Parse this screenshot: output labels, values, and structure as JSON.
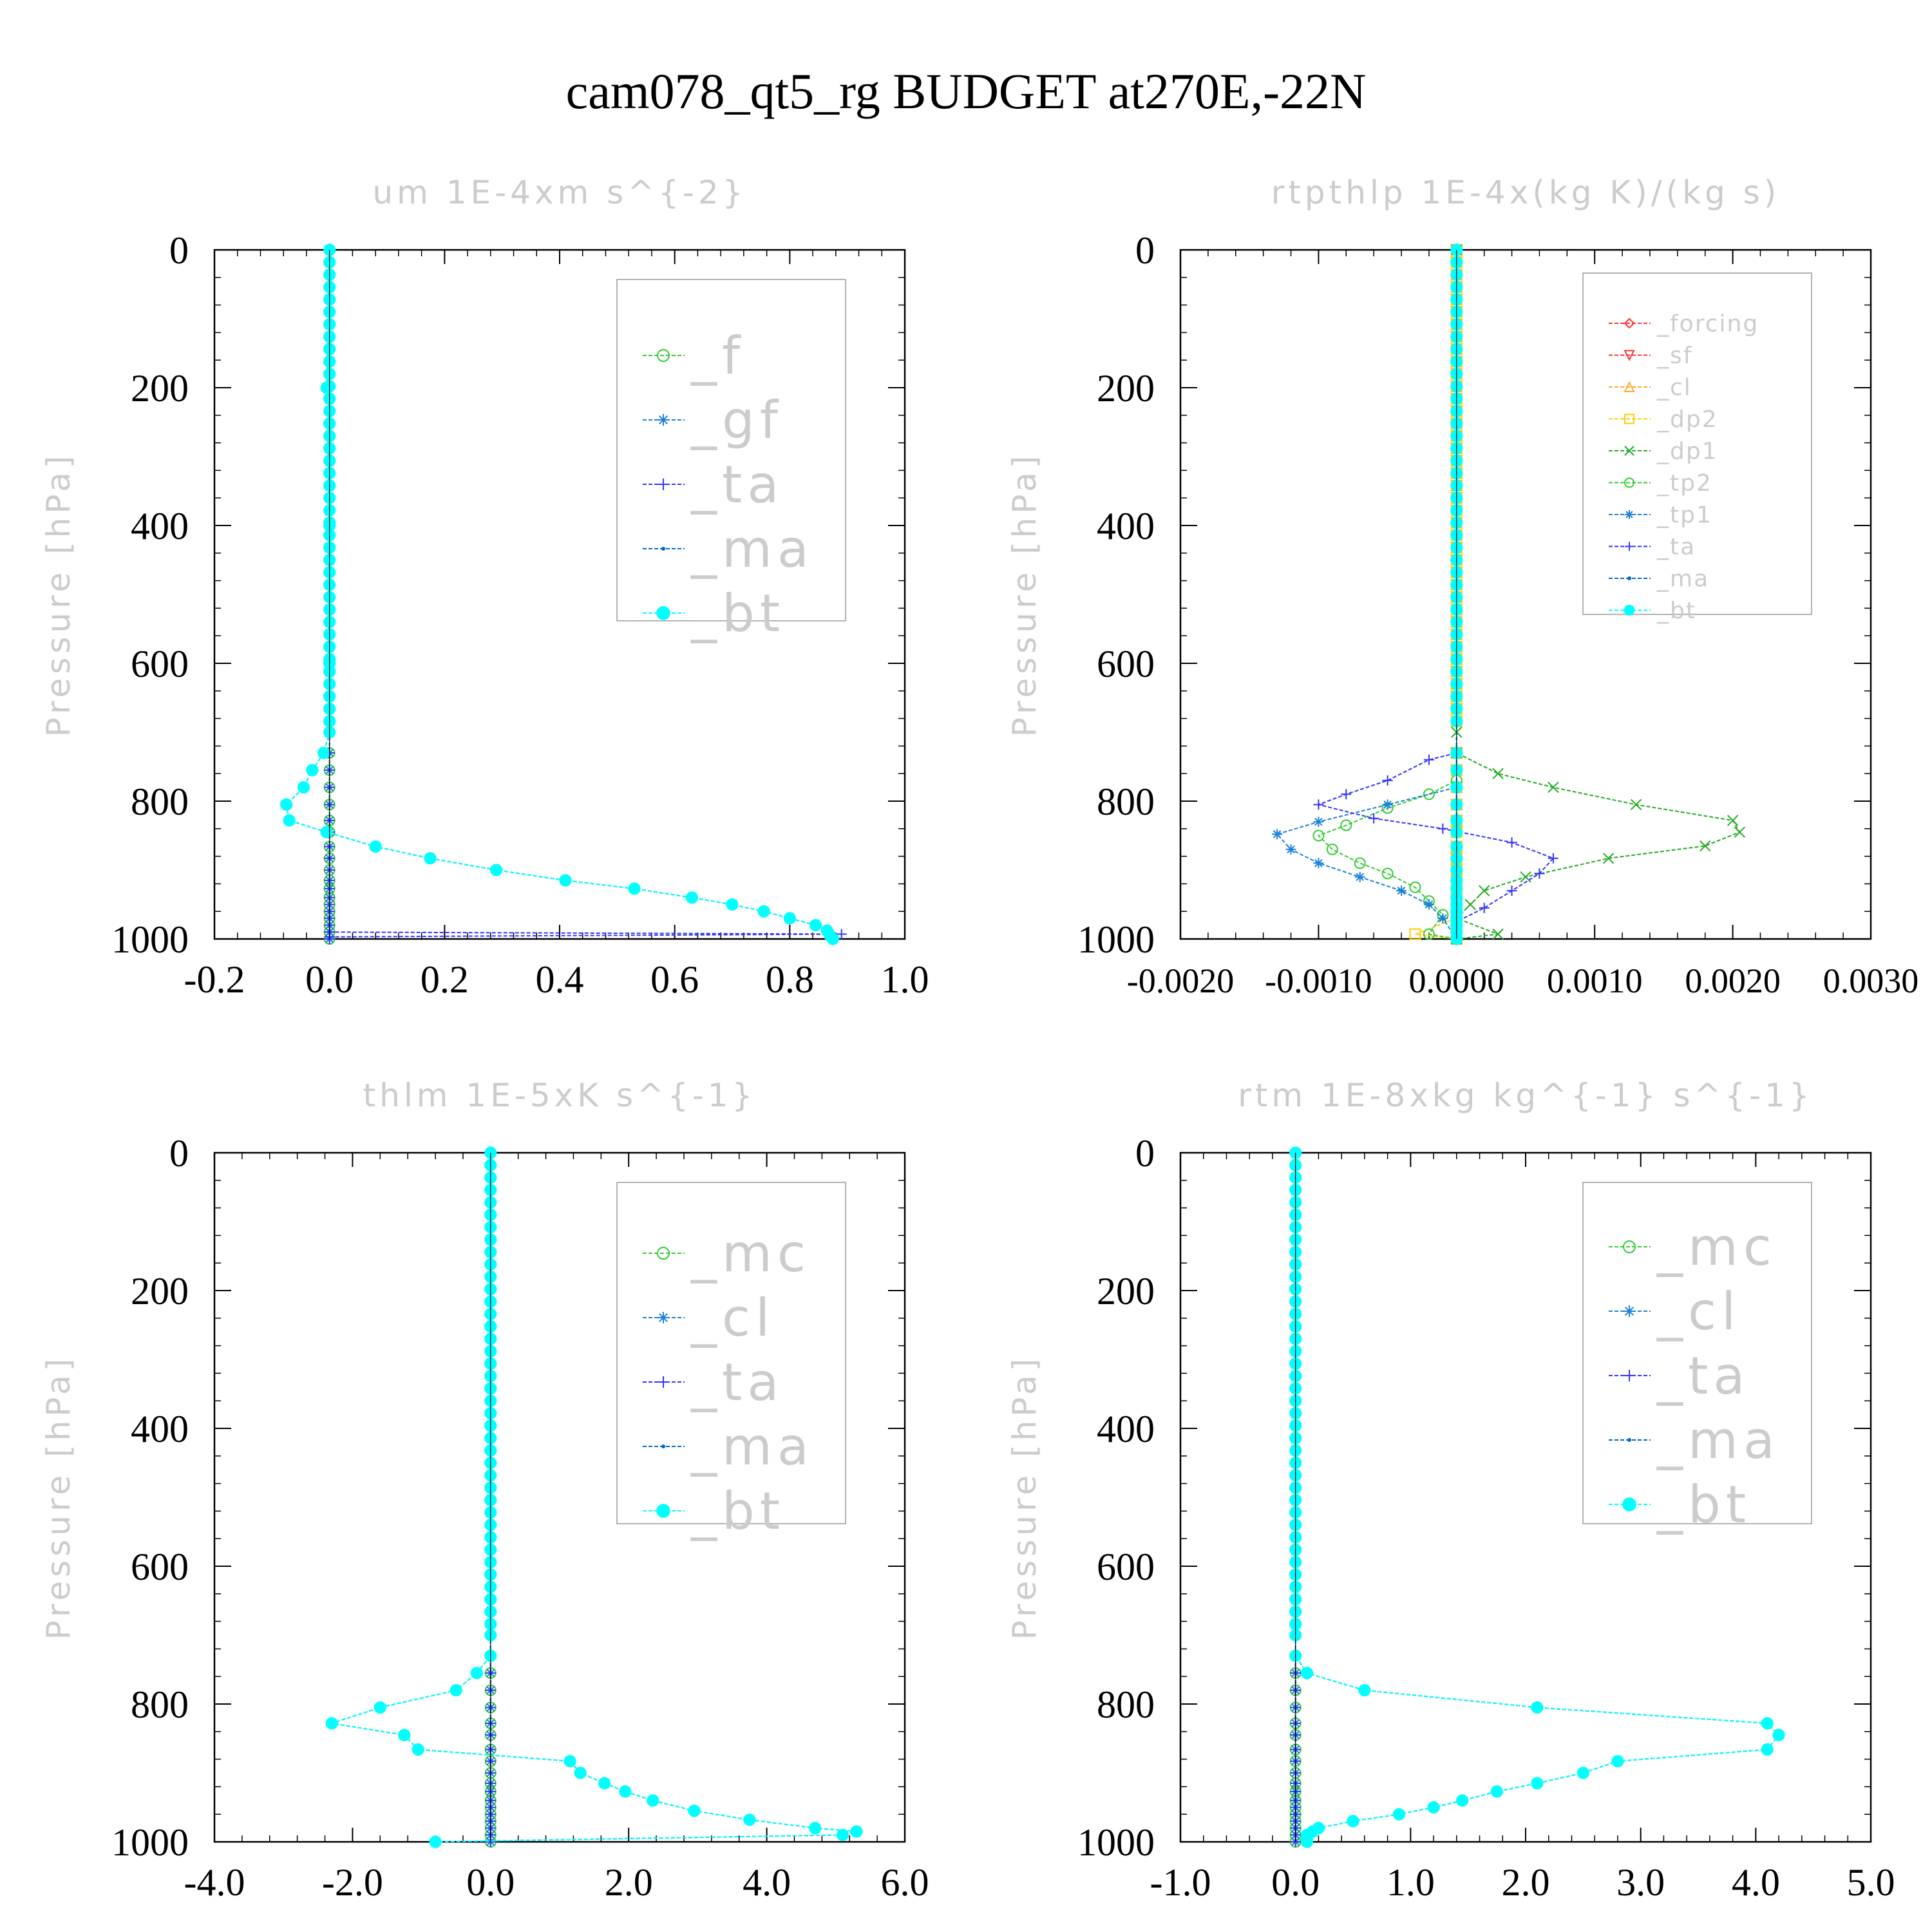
{
  "title": "cam078_qt5_rg  BUDGET at270E,-22N",
  "colors": {
    "green": "#33cc33",
    "blue_gf": "#1a80d9",
    "blue_ta": "#3333ff",
    "blue_ma": "#0066cc",
    "cyan": "#00ffff",
    "red": "#ff3333",
    "orange": "#ffaa33",
    "yellow": "#ffcc00",
    "darkgreen": "#22aa22",
    "faint_text": "#cccccc"
  },
  "chart_data": [
    {
      "type": "line",
      "title": "um   1E-4xm s^{-2}",
      "ylabel": "Pressure [hPa]",
      "xlim": [
        -0.2,
        1.0
      ],
      "ylim": [
        1000,
        0
      ],
      "xticks": [
        -0.2,
        0.0,
        0.2,
        0.4,
        0.6,
        0.8,
        1.0
      ],
      "xtick_labels": [
        "-0.2",
        "0.0",
        "0.2",
        "0.4",
        "0.6",
        "0.8",
        "1.0"
      ],
      "yticks": [
        0,
        200,
        400,
        600,
        800,
        1000
      ],
      "ytick_labels": [
        "0",
        "200",
        "400",
        "600",
        "800",
        "1000"
      ],
      "legend": "top-right",
      "series": [
        {
          "name": "_f",
          "color": "#33cc33",
          "marker": "circle",
          "constant": 0.0
        },
        {
          "name": "_gf",
          "color": "#1a80d9",
          "marker": "star",
          "constant": 0.0
        },
        {
          "name": "_ta",
          "color": "#3333ff",
          "marker": "plus",
          "constant": 0.0,
          "points": [
            [
              0.0,
              990
            ],
            [
              0.89,
              993
            ],
            [
              0.0,
              997
            ]
          ]
        },
        {
          "name": "_ma",
          "color": "#0066cc",
          "marker": "dot",
          "ref": "_bt"
        },
        {
          "name": "_bt",
          "color": "#00ffff",
          "marker": "bigdot",
          "points": [
            [
              0.0,
              0
            ],
            [
              -0.005,
              200
            ],
            [
              0.0,
              400
            ],
            [
              0.0,
              600
            ],
            [
              0.0,
              700
            ],
            [
              -0.01,
              730
            ],
            [
              -0.03,
              755
            ],
            [
              -0.045,
              780
            ],
            [
              -0.075,
              805
            ],
            [
              -0.07,
              828
            ],
            [
              -0.005,
              845
            ],
            [
              0.08,
              866
            ],
            [
              0.175,
              883
            ],
            [
              0.29,
              900
            ],
            [
              0.41,
              915
            ],
            [
              0.53,
              927
            ],
            [
              0.63,
              940
            ],
            [
              0.7,
              950
            ],
            [
              0.755,
              960
            ],
            [
              0.8,
              970
            ],
            [
              0.845,
              980
            ],
            [
              0.865,
              988
            ],
            [
              0.87,
              995
            ],
            [
              0.875,
              1000
            ]
          ]
        }
      ]
    },
    {
      "type": "line",
      "title": "rtpthlp   1E-4x(kg K)/(kg s)",
      "ylabel": "Pressure [hPa]",
      "xlim": [
        -0.002,
        0.003
      ],
      "ylim": [
        1000,
        0
      ],
      "xticks": [
        -0.002,
        -0.001,
        0.0,
        0.001,
        0.002,
        0.003
      ],
      "xtick_labels": [
        "-0.0020",
        "-0.0010",
        "0.0000",
        "0.0010",
        "0.0020",
        "0.0030"
      ],
      "yticks": [
        0,
        200,
        400,
        600,
        800,
        1000
      ],
      "ytick_labels": [
        "0",
        "200",
        "400",
        "600",
        "800",
        "1000"
      ],
      "legend": "top-right",
      "series": [
        {
          "name": "_forcing",
          "color": "#ff3333",
          "marker": "diamond",
          "constant": 0.0
        },
        {
          "name": "_sf",
          "color": "#ff3333",
          "marker": "triangle-down",
          "constant": 0.0
        },
        {
          "name": "_cl",
          "color": "#ffaa33",
          "marker": "triangle-up",
          "constant": 0.0
        },
        {
          "name": "_dp2",
          "color": "#ffcc00",
          "marker": "square",
          "constant": 0.0,
          "points": [
            [
              0.0,
              970
            ],
            [
              -0.0003,
              993
            ],
            [
              0.0,
              1000
            ]
          ]
        },
        {
          "name": "_dp1",
          "color": "#22aa22",
          "marker": "x",
          "points": [
            [
              0.0,
              0
            ],
            [
              0.0,
              700
            ],
            [
              0.0,
              730
            ],
            [
              0.0003,
              760
            ],
            [
              0.0007,
              780
            ],
            [
              0.0013,
              805
            ],
            [
              0.002,
              828
            ],
            [
              0.00205,
              845
            ],
            [
              0.0018,
              865
            ],
            [
              0.0011,
              883
            ],
            [
              0.0005,
              910
            ],
            [
              0.0002,
              930
            ],
            [
              0.0001,
              950
            ],
            [
              0.0,
              970
            ],
            [
              0.0003,
              993
            ],
            [
              0.0,
              1000
            ]
          ]
        },
        {
          "name": "_tp2",
          "color": "#33cc33",
          "marker": "circle",
          "points": [
            [
              0.0,
              0
            ],
            [
              0.0,
              770
            ],
            [
              -0.0002,
              790
            ],
            [
              -0.0005,
              810
            ],
            [
              -0.0008,
              835
            ],
            [
              -0.001,
              850
            ],
            [
              -0.0009,
              870
            ],
            [
              -0.0007,
              890
            ],
            [
              -0.0005,
              905
            ],
            [
              -0.0003,
              925
            ],
            [
              -0.0002,
              945
            ],
            [
              -0.0001,
              965
            ],
            [
              -0.0002,
              993
            ],
            [
              0.0,
              1000
            ]
          ]
        },
        {
          "name": "_tp1",
          "color": "#1a80d9",
          "marker": "star",
          "points": [
            [
              0.0,
              0
            ],
            [
              0.0,
              780
            ],
            [
              -0.0005,
              805
            ],
            [
              -0.001,
              830
            ],
            [
              -0.0013,
              848
            ],
            [
              -0.0012,
              870
            ],
            [
              -0.001,
              890
            ],
            [
              -0.0007,
              910
            ],
            [
              -0.0004,
              930
            ],
            [
              -0.0002,
              950
            ],
            [
              -0.0001,
              970
            ],
            [
              0.0,
              1000
            ]
          ]
        },
        {
          "name": "_ta",
          "color": "#3333ff",
          "marker": "plus",
          "points": [
            [
              0.0,
              0
            ],
            [
              0.0,
              730
            ],
            [
              -0.0002,
              740
            ],
            [
              -0.0005,
              770
            ],
            [
              -0.0008,
              790
            ],
            [
              -0.001,
              805
            ],
            [
              -0.0006,
              825
            ],
            [
              -0.0001,
              840
            ],
            [
              0.0004,
              860
            ],
            [
              0.0007,
              883
            ],
            [
              0.0006,
              905
            ],
            [
              0.0004,
              930
            ],
            [
              0.0002,
              955
            ],
            [
              0.0,
              975
            ],
            [
              0.0,
              1000
            ]
          ]
        },
        {
          "name": "_ma",
          "color": "#0066cc",
          "marker": "dot",
          "constant": 0.0
        },
        {
          "name": "_bt",
          "color": "#00ffff",
          "marker": "bigdot",
          "constant": 0.0
        }
      ]
    },
    {
      "type": "line",
      "title": "thlm   1E-5xK s^{-1}",
      "ylabel": "Pressure [hPa]",
      "xlim": [
        -4.0,
        6.0
      ],
      "ylim": [
        1000,
        0
      ],
      "xticks": [
        -4.0,
        -2.0,
        0.0,
        2.0,
        4.0,
        6.0
      ],
      "xtick_labels": [
        "-4.0",
        "-2.0",
        "0.0",
        "2.0",
        "4.0",
        "6.0"
      ],
      "yticks": [
        0,
        200,
        400,
        600,
        800,
        1000
      ],
      "ytick_labels": [
        "0",
        "200",
        "400",
        "600",
        "800",
        "1000"
      ],
      "legend": "top-right",
      "series": [
        {
          "name": "_mc",
          "color": "#33cc33",
          "marker": "circle",
          "constant": 0.0
        },
        {
          "name": "_cl",
          "color": "#1a80d9",
          "marker": "star",
          "constant": 0.0
        },
        {
          "name": "_ta",
          "color": "#3333ff",
          "marker": "plus",
          "constant": 0.0
        },
        {
          "name": "_ma",
          "color": "#0066cc",
          "marker": "dot",
          "ref": "_bt"
        },
        {
          "name": "_bt",
          "color": "#00ffff",
          "marker": "bigdot",
          "points": [
            [
              0.0,
              0
            ],
            [
              0.0,
              700
            ],
            [
              0.0,
              730
            ],
            [
              -0.2,
              755
            ],
            [
              -0.5,
              780
            ],
            [
              -1.6,
              805
            ],
            [
              -2.3,
              828
            ],
            [
              -1.25,
              845
            ],
            [
              -1.05,
              866
            ],
            [
              1.15,
              883
            ],
            [
              1.3,
              900
            ],
            [
              1.65,
              915
            ],
            [
              1.95,
              927
            ],
            [
              2.35,
              940
            ],
            [
              2.95,
              955
            ],
            [
              3.75,
              968
            ],
            [
              4.7,
              980
            ],
            [
              5.3,
              985
            ],
            [
              5.1,
              990
            ],
            [
              -0.8,
              1000
            ]
          ]
        }
      ]
    },
    {
      "type": "line",
      "title": "rtm   1E-8xkg kg^{-1} s^{-1}",
      "ylabel": "Pressure [hPa]",
      "xlim": [
        -1.0,
        5.0
      ],
      "ylim": [
        1000,
        0
      ],
      "xticks": [
        -1.0,
        0.0,
        1.0,
        2.0,
        3.0,
        4.0,
        5.0
      ],
      "xtick_labels": [
        "-1.0",
        "0.0",
        "1.0",
        "2.0",
        "3.0",
        "4.0",
        "5.0"
      ],
      "yticks": [
        0,
        200,
        400,
        600,
        800,
        1000
      ],
      "ytick_labels": [
        "0",
        "200",
        "400",
        "600",
        "800",
        "1000"
      ],
      "legend": "top-right",
      "series": [
        {
          "name": "_mc",
          "color": "#33cc33",
          "marker": "circle",
          "constant": 0.0
        },
        {
          "name": "_cl",
          "color": "#1a80d9",
          "marker": "star",
          "constant": 0.0
        },
        {
          "name": "_ta",
          "color": "#3333ff",
          "marker": "plus",
          "constant": 0.0
        },
        {
          "name": "_ma",
          "color": "#0066cc",
          "marker": "dot",
          "ref": "_bt"
        },
        {
          "name": "_bt",
          "color": "#00ffff",
          "marker": "bigdot",
          "points": [
            [
              0.0,
              0
            ],
            [
              0.0,
              700
            ],
            [
              0.0,
              730
            ],
            [
              0.1,
              755
            ],
            [
              0.6,
              780
            ],
            [
              2.1,
              805
            ],
            [
              4.1,
              828
            ],
            [
              4.2,
              845
            ],
            [
              4.1,
              866
            ],
            [
              2.8,
              883
            ],
            [
              2.5,
              900
            ],
            [
              2.1,
              915
            ],
            [
              1.75,
              927
            ],
            [
              1.45,
              940
            ],
            [
              1.2,
              950
            ],
            [
              0.9,
              960
            ],
            [
              0.5,
              970
            ],
            [
              0.2,
              980
            ],
            [
              0.15,
              985
            ],
            [
              0.1,
              990
            ],
            [
              0.1,
              995
            ],
            [
              0.1,
              1000
            ]
          ]
        }
      ]
    }
  ]
}
